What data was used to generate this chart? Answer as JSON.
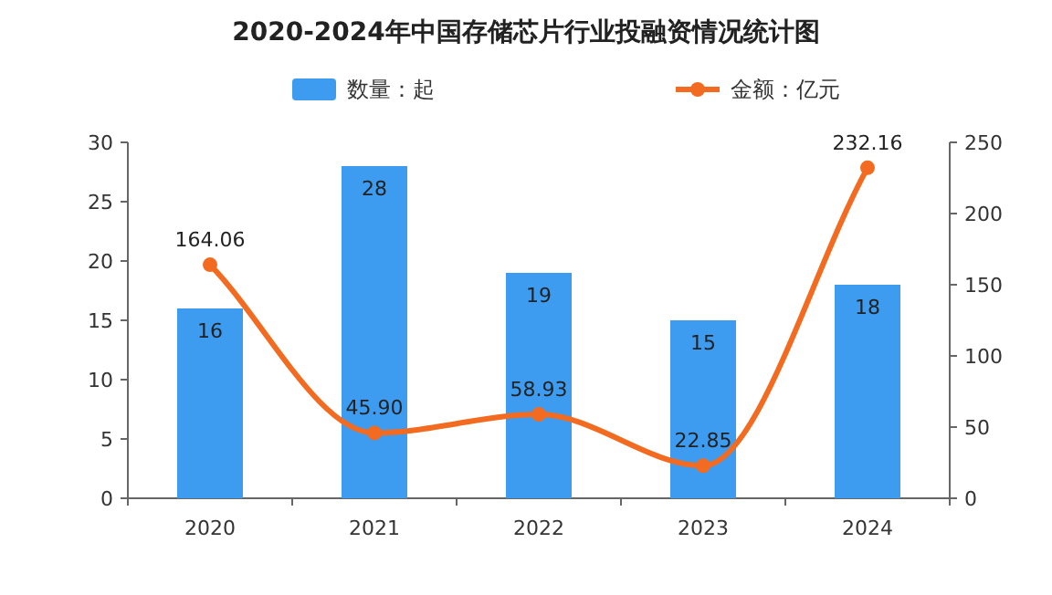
{
  "chart_data": {
    "type": "bar",
    "title": "2020-2024年中国存储芯片行业投融资情况统计图",
    "categories": [
      "2020",
      "2021",
      "2022",
      "2023",
      "2024"
    ],
    "series": [
      {
        "name": "数量：起",
        "color": "#3d9cf0",
        "values": [
          16,
          28,
          19,
          15,
          18
        ],
        "value_labels": [
          "16",
          "28",
          "19",
          "15",
          "18"
        ]
      },
      {
        "name": "金额：亿元",
        "type": "line",
        "axis": "y2",
        "color": "#f26b21",
        "values": [
          164.06,
          45.9,
          58.93,
          22.85,
          232.16
        ],
        "value_labels": [
          "164.06",
          "45.90",
          "58.93",
          "22.85",
          "232.16"
        ],
        "marker": "circle"
      }
    ],
    "ylim": [
      0,
      30
    ],
    "yticks": [
      0,
      5,
      10,
      15,
      20,
      25,
      30
    ],
    "y2lim": [
      0,
      250
    ],
    "y2ticks": [
      0,
      50,
      100,
      150,
      200,
      250
    ],
    "legend": "top",
    "grid": false
  }
}
